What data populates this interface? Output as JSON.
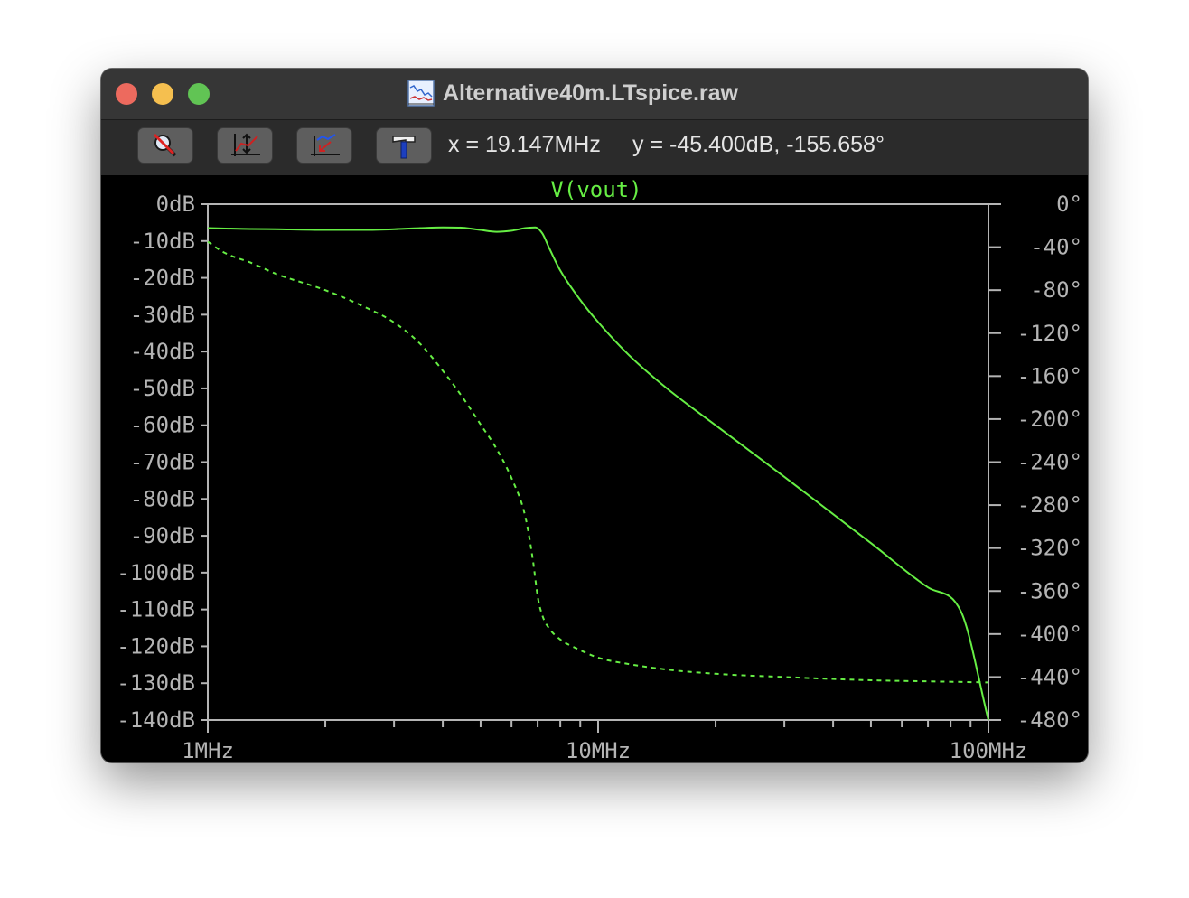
{
  "window": {
    "title": "Alternative40m.LTspice.raw",
    "title_icon": "waveform-document-icon"
  },
  "toolbar": {
    "buttons": [
      {
        "name": "zoom-cancel-button",
        "icon": "zoom-cancel-icon"
      },
      {
        "name": "autorange-button",
        "icon": "autorange-icon"
      },
      {
        "name": "zoom-back-button",
        "icon": "zoom-back-icon"
      },
      {
        "name": "tools-button",
        "icon": "hammer-icon"
      }
    ],
    "cursor_x": "x = 19.147MHz",
    "cursor_y": "y = -45.400dB, -155.658°"
  },
  "colors": {
    "trace": "#66ee44",
    "axes": "#b4b4b4",
    "plot_background": "#000000"
  },
  "chart_data": {
    "type": "line",
    "title": "V(vout)",
    "x_scale": "log",
    "xlim": [
      1000000,
      100000000
    ],
    "x_ticks": [
      {
        "value": 1000000,
        "label": "1MHz"
      },
      {
        "value": 10000000,
        "label": "10MHz"
      },
      {
        "value": 100000000,
        "label": "100MHz"
      }
    ],
    "y_left_lim": [
      -140,
      0
    ],
    "y_left_ticks": [
      "0dB",
      "-10dB",
      "-20dB",
      "-30dB",
      "-40dB",
      "-50dB",
      "-60dB",
      "-70dB",
      "-80dB",
      "-90dB",
      "-100dB",
      "-110dB",
      "-120dB",
      "-130dB",
      "-140dB"
    ],
    "y_right_lim": [
      -480,
      0
    ],
    "y_right_ticks": [
      "0°",
      "-40°",
      "-80°",
      "-120°",
      "-160°",
      "-200°",
      "-240°",
      "-280°",
      "-320°",
      "-360°",
      "-400°",
      "-440°",
      "-480°"
    ],
    "grid": false,
    "series": [
      {
        "name": "magnitude",
        "axis": "left",
        "style": "solid",
        "x": [
          1000000,
          1200000,
          1500000,
          2000000,
          2500000,
          3000000,
          3500000,
          4000000,
          4500000,
          5000000,
          5500000,
          6000000,
          6500000,
          6900000,
          7200000,
          7500000,
          8000000,
          9000000,
          10000000,
          12000000,
          15000000,
          20000000,
          30000000,
          50000000,
          70000000,
          85000000,
          100000000
        ],
        "values": [
          -6.5,
          -6.7,
          -6.8,
          -7.0,
          -7.0,
          -6.8,
          -6.5,
          -6.3,
          -6.4,
          -7.0,
          -7.5,
          -7.2,
          -6.5,
          -6.3,
          -8,
          -12,
          -18,
          -26,
          -32,
          -41,
          -50,
          -60,
          -74,
          -92,
          -104,
          -110.5,
          -140
        ]
      },
      {
        "name": "phase",
        "axis": "right",
        "style": "dashed",
        "x": [
          1000000,
          1100000,
          1300000,
          1500000,
          2000000,
          2500000,
          3000000,
          3500000,
          4000000,
          4500000,
          5000000,
          5500000,
          6000000,
          6500000,
          6800000,
          7000000,
          7200000,
          7500000,
          8000000,
          9000000,
          10000000,
          12000000,
          15000000,
          20000000,
          30000000,
          50000000,
          70000000,
          100000000
        ],
        "values": [
          -35,
          -45,
          -55,
          -65,
          -80,
          -95,
          -110,
          -130,
          -155,
          -180,
          -205,
          -228,
          -255,
          -290,
          -330,
          -365,
          -383,
          -395,
          -405,
          -415,
          -422,
          -428,
          -433,
          -437,
          -440,
          -443,
          -444,
          -445
        ]
      }
    ]
  }
}
